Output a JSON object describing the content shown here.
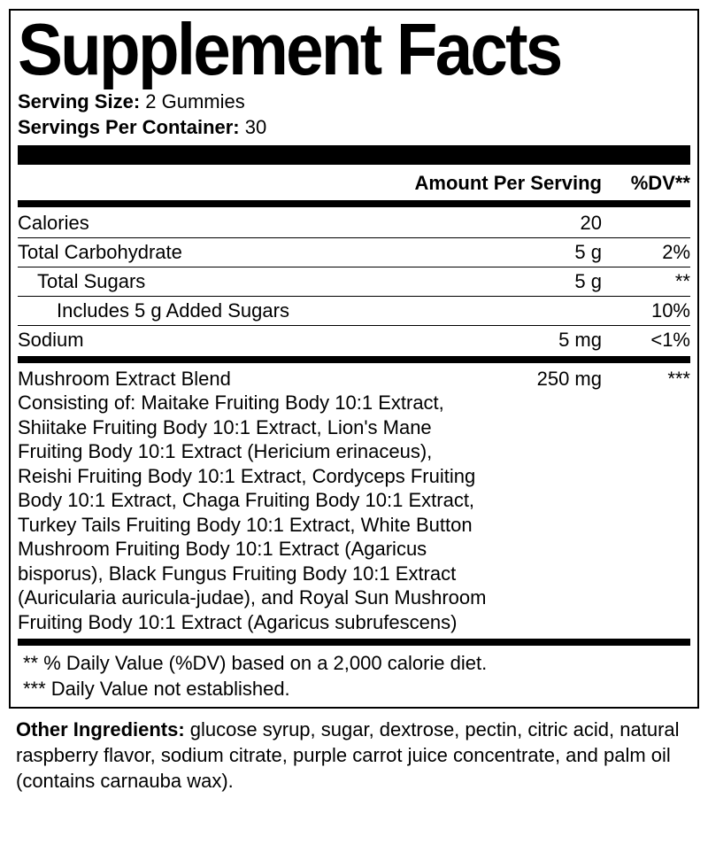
{
  "title": "Supplement Facts",
  "serving_size_label": "Serving Size:",
  "serving_size_value": " 2 Gummies",
  "servings_label": "Servings Per Container:",
  "servings_value": " 30",
  "header_amount": "Amount Per Serving",
  "header_dv": "%DV**",
  "rows": {
    "calories": {
      "name": "Calories",
      "amount": "20",
      "dv": ""
    },
    "carb": {
      "name": "Total Carbohydrate",
      "amount": "5 g",
      "dv": "2%"
    },
    "sugars": {
      "name": "Total Sugars",
      "amount": "5 g",
      "dv": "**"
    },
    "added": {
      "name": "Includes 5 g Added Sugars",
      "amount": "",
      "dv": "10%"
    },
    "sodium": {
      "name": "Sodium",
      "amount": "5 mg",
      "dv": "<1%"
    }
  },
  "blend": {
    "name": "Mushroom Extract Blend",
    "amount": "250 mg",
    "dv": "***",
    "desc": "Consisting of: Maitake Fruiting Body 10:1 Extract, Shiitake Fruiting Body 10:1 Extract, Lion's Mane Fruiting Body 10:1 Extract (Hericium erinaceus), Reishi Fruiting Body 10:1 Extract, Cordyceps Fruiting Body 10:1 Extract, Chaga Fruiting Body 10:1 Extract, Turkey Tails Fruiting Body 10:1 Extract, White Button Mushroom Fruiting Body 10:1 Extract (Agaricus bisporus), Black Fungus Fruiting Body 10:1 Extract (Auricularia auricula-judae), and Royal Sun Mushroom Fruiting Body 10:1 Extract (Agaricus subrufescens)"
  },
  "footnote1": "** % Daily Value (%DV) based on a 2,000 calorie diet.",
  "footnote2": "*** Daily Value not established.",
  "other_label": "Other Ingredients:",
  "other_value": " glucose syrup, sugar, dextrose, pectin, citric acid, natural raspberry flavor, sodium citrate, purple carrot juice concentrate, and palm oil (contains carnauba wax)."
}
